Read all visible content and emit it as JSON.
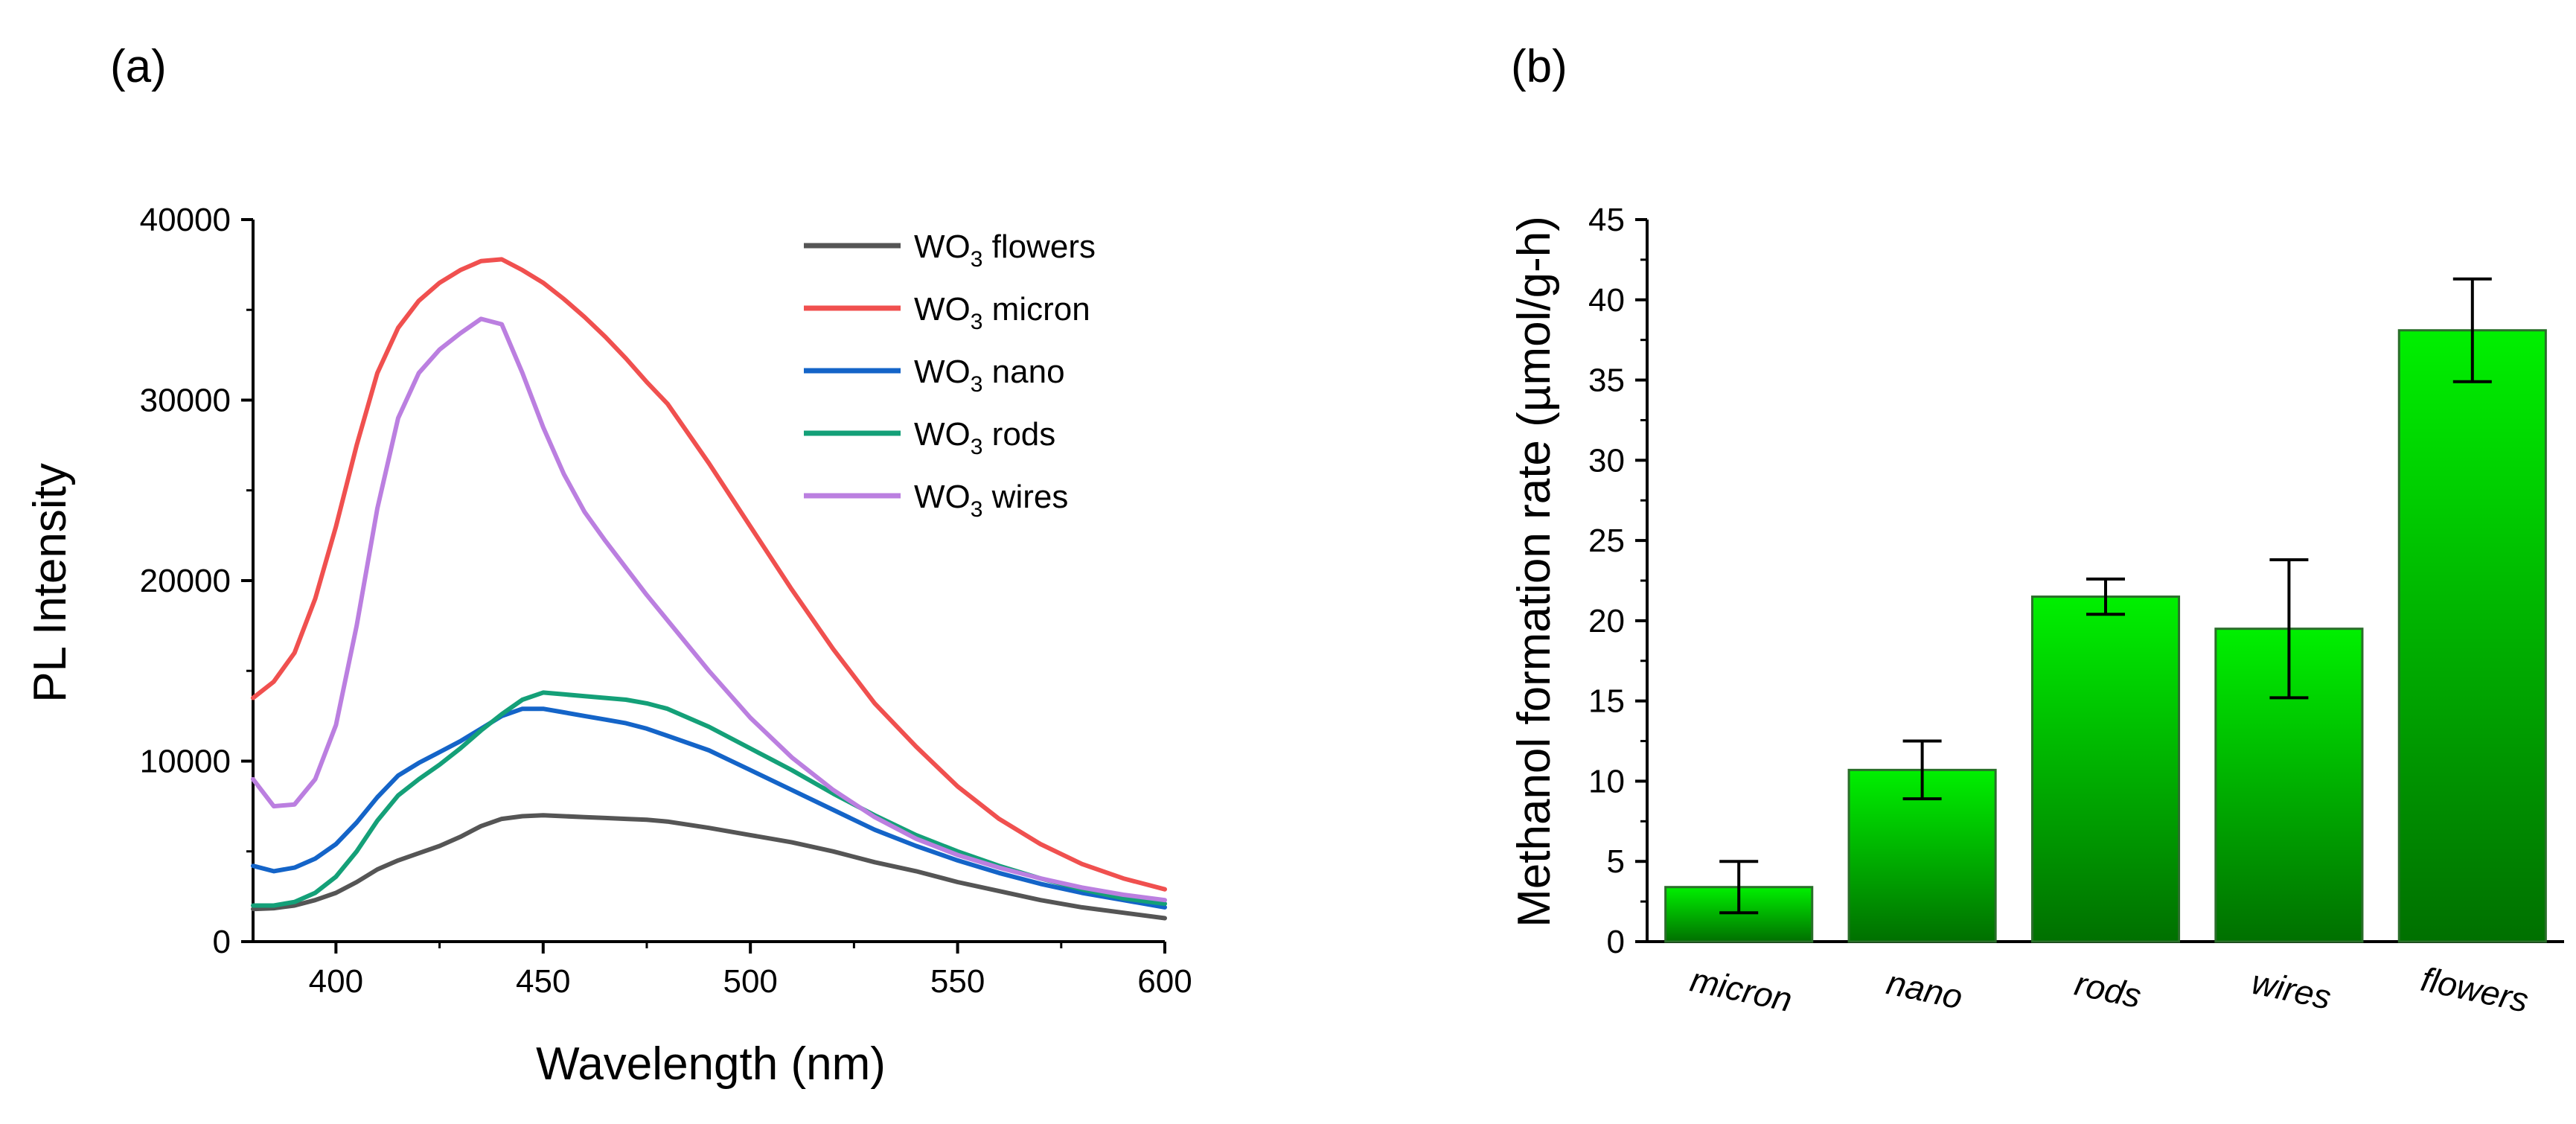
{
  "chart_data": [
    {
      "panel": "(a)",
      "type": "line",
      "xlabel": "Wavelength (nm)",
      "ylabel": "PL Intensity",
      "xlim": [
        380,
        600
      ],
      "ylim": [
        0,
        40000
      ],
      "xticks": [
        400,
        450,
        500,
        550,
        600
      ],
      "yticks": [
        0,
        10000,
        20000,
        30000,
        40000
      ],
      "x": [
        380,
        385,
        390,
        395,
        400,
        405,
        410,
        415,
        420,
        425,
        430,
        435,
        440,
        445,
        450,
        455,
        460,
        465,
        470,
        475,
        480,
        490,
        500,
        510,
        520,
        530,
        540,
        550,
        560,
        570,
        580,
        590,
        600
      ],
      "series": [
        {
          "name": "WO3 flowers",
          "legend_main": "WO",
          "legend_sub": "3",
          "legend_suffix": " flowers",
          "color": "#555555",
          "values": [
            1800,
            1850,
            2000,
            2300,
            2700,
            3300,
            4000,
            4500,
            4900,
            5300,
            5800,
            6400,
            6800,
            6950,
            7000,
            6950,
            6900,
            6850,
            6800,
            6750,
            6650,
            6300,
            5900,
            5500,
            5000,
            4400,
            3900,
            3300,
            2800,
            2300,
            1900,
            1600,
            1300
          ]
        },
        {
          "name": "WO3 micron",
          "legend_main": "WO",
          "legend_sub": "3",
          "legend_suffix": " micron",
          "color": "#f0504f",
          "values": [
            13500,
            14400,
            16000,
            19000,
            23000,
            27500,
            31500,
            34000,
            35500,
            36500,
            37200,
            37700,
            37800,
            37200,
            36500,
            35600,
            34600,
            33500,
            32300,
            31000,
            29800,
            26500,
            23000,
            19500,
            16200,
            13200,
            10800,
            8600,
            6800,
            5400,
            4300,
            3500,
            2900
          ]
        },
        {
          "name": "WO3 nano",
          "legend_main": "WO",
          "legend_sub": "3",
          "legend_suffix": " nano",
          "color": "#1464c8",
          "values": [
            4200,
            3900,
            4100,
            4600,
            5400,
            6600,
            8000,
            9200,
            9900,
            10500,
            11100,
            11800,
            12500,
            12900,
            12900,
            12700,
            12500,
            12300,
            12100,
            11800,
            11400,
            10600,
            9500,
            8400,
            7300,
            6200,
            5300,
            4500,
            3800,
            3200,
            2700,
            2300,
            1900
          ]
        },
        {
          "name": "WO3 rods",
          "legend_main": "WO",
          "legend_sub": "3",
          "legend_suffix": " rods",
          "color": "#14a078",
          "values": [
            2000,
            2000,
            2200,
            2700,
            3600,
            5000,
            6700,
            8100,
            9000,
            9800,
            10700,
            11700,
            12600,
            13400,
            13800,
            13700,
            13600,
            13500,
            13400,
            13200,
            12900,
            11900,
            10700,
            9500,
            8200,
            7000,
            5900,
            5000,
            4200,
            3500,
            2900,
            2400,
            2100
          ]
        },
        {
          "name": "WO3 wires",
          "legend_main": "WO",
          "legend_sub": "3",
          "legend_suffix": " wires",
          "color": "#bb7fe0",
          "values": [
            9000,
            7500,
            7600,
            9000,
            12000,
            17500,
            24000,
            29000,
            31500,
            32800,
            33700,
            34500,
            34200,
            31500,
            28500,
            25900,
            23800,
            22200,
            20700,
            19200,
            17800,
            15000,
            12400,
            10200,
            8400,
            6900,
            5700,
            4800,
            4100,
            3500,
            3000,
            2600,
            2300
          ]
        }
      ]
    },
    {
      "panel": "(b)",
      "type": "bar",
      "ylabel": "Methanol formation rate (µmol/g-h)",
      "ylim": [
        0,
        45
      ],
      "yticks": [
        0,
        5,
        10,
        15,
        20,
        25,
        30,
        35,
        40,
        45
      ],
      "categories": [
        "micron",
        "nano",
        "rods",
        "wires",
        "flowers"
      ],
      "values": [
        3.4,
        10.7,
        21.5,
        19.5,
        38.1
      ],
      "errors": [
        1.6,
        1.8,
        1.1,
        4.3,
        3.2
      ],
      "colors": {
        "bar_top": "#00f000",
        "bar_bottom": "#007000",
        "bar_edge": "#2a6e2a",
        "error_bar": "#000000"
      }
    }
  ]
}
